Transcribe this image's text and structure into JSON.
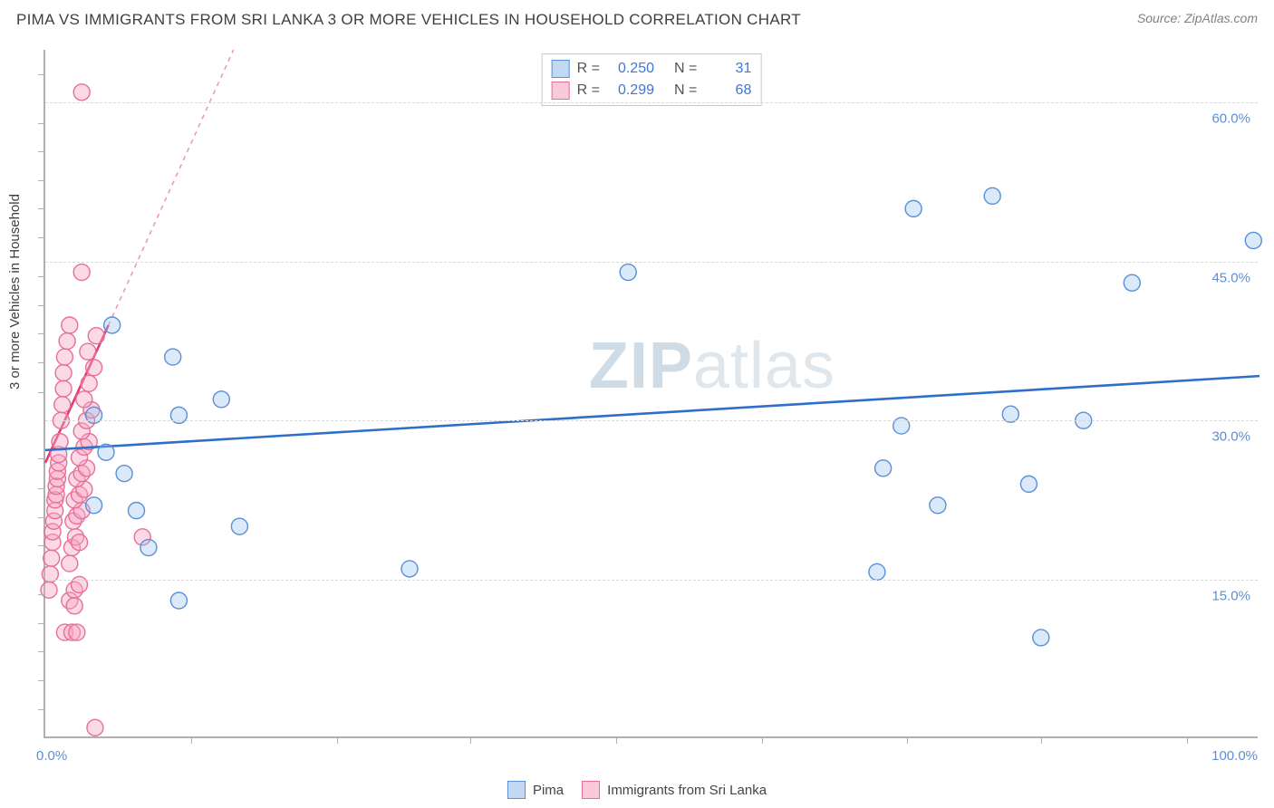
{
  "title": "PIMA VS IMMIGRANTS FROM SRI LANKA 3 OR MORE VEHICLES IN HOUSEHOLD CORRELATION CHART",
  "source": "Source: ZipAtlas.com",
  "watermark": "ZIPatlas",
  "y_axis_title": "3 or more Vehicles in Household",
  "x_min_label": "0.0%",
  "x_max_label": "100.0%",
  "chart": {
    "type": "scatter",
    "xlim": [
      0,
      100
    ],
    "ylim": [
      0,
      65
    ],
    "y_ticks": [
      15.0,
      30.0,
      45.0,
      60.0
    ],
    "y_tick_labels": [
      "15.0%",
      "30.0%",
      "45.0%",
      "60.0%"
    ],
    "x_minor_ticks": [
      12,
      24,
      35,
      47,
      59,
      71,
      82,
      94
    ],
    "y_minor_ticks": [
      2.7,
      5.5,
      8.2,
      10.9,
      13.6,
      18.2,
      20.9,
      23.6,
      26.4,
      32.7,
      35.5,
      38.2,
      40.9,
      43.6,
      47.3,
      50,
      52.7,
      55.4,
      58.1,
      62.7
    ],
    "grid_color": "#d8d8d8",
    "background_color": "#ffffff",
    "axis_color": "#b0b0b0",
    "tick_label_color": "#5b8fd6",
    "marker_radius": 9,
    "marker_stroke_width": 1.4,
    "trend_line_width": 2.6,
    "series": {
      "pima": {
        "label": "Pima",
        "fill": "rgba(150,195,240,0.35)",
        "stroke": "#5b8fd6",
        "trend_stroke": "#2f6fc9",
        "trend_dash_stroke": "#6fa0e0",
        "r_label": "R =",
        "r_value": "0.250",
        "n_label": "N =",
        "n_value": "31",
        "trend": {
          "x1": 0,
          "y1": 27.2,
          "x2": 100,
          "y2": 34.2
        },
        "points": [
          {
            "x": 4.0,
            "y": 22.0
          },
          {
            "x": 4.0,
            "y": 30.5
          },
          {
            "x": 5.0,
            "y": 27.0
          },
          {
            "x": 5.5,
            "y": 39.0
          },
          {
            "x": 6.5,
            "y": 25.0
          },
          {
            "x": 7.5,
            "y": 21.5
          },
          {
            "x": 8.5,
            "y": 18.0
          },
          {
            "x": 10.5,
            "y": 36.0
          },
          {
            "x": 11.0,
            "y": 13.0
          },
          {
            "x": 11.0,
            "y": 30.5
          },
          {
            "x": 14.5,
            "y": 32.0
          },
          {
            "x": 16.0,
            "y": 20.0
          },
          {
            "x": 30.0,
            "y": 16.0
          },
          {
            "x": 48.0,
            "y": 44.0
          },
          {
            "x": 68.5,
            "y": 15.7
          },
          {
            "x": 69.0,
            "y": 25.5
          },
          {
            "x": 70.5,
            "y": 29.5
          },
          {
            "x": 71.5,
            "y": 50.0
          },
          {
            "x": 73.5,
            "y": 22.0
          },
          {
            "x": 78.0,
            "y": 51.2
          },
          {
            "x": 79.5,
            "y": 30.6
          },
          {
            "x": 81.0,
            "y": 24.0
          },
          {
            "x": 82.0,
            "y": 9.5
          },
          {
            "x": 85.5,
            "y": 30.0
          },
          {
            "x": 89.5,
            "y": 43.0
          },
          {
            "x": 99.5,
            "y": 47.0
          }
        ]
      },
      "sri_lanka": {
        "label": "Immigrants from Sri Lanka",
        "fill": "rgba(248,165,195,0.42)",
        "stroke": "#e66f98",
        "trend_stroke": "#e33b73",
        "trend_dash_stroke": "#ef9ab5",
        "r_label": "R =",
        "r_value": "0.299",
        "n_label": "N =",
        "n_value": "68",
        "trend": {
          "x1": 0,
          "y1": 26.0,
          "x2": 5.2,
          "y2": 39.0
        },
        "trend_dash": {
          "x1": 5.2,
          "y1": 39.0,
          "x2": 15.5,
          "y2": 65.0
        },
        "points": [
          {
            "x": 0.3,
            "y": 14.0
          },
          {
            "x": 0.4,
            "y": 15.5
          },
          {
            "x": 0.5,
            "y": 17.0
          },
          {
            "x": 0.6,
            "y": 18.5
          },
          {
            "x": 0.6,
            "y": 19.5
          },
          {
            "x": 0.7,
            "y": 20.5
          },
          {
            "x": 0.8,
            "y": 21.5
          },
          {
            "x": 0.8,
            "y": 22.5
          },
          {
            "x": 0.9,
            "y": 23.0
          },
          {
            "x": 0.9,
            "y": 23.8
          },
          {
            "x": 1.0,
            "y": 24.5
          },
          {
            "x": 1.0,
            "y": 25.2
          },
          {
            "x": 1.1,
            "y": 26.0
          },
          {
            "x": 1.1,
            "y": 26.8
          },
          {
            "x": 1.2,
            "y": 28.0
          },
          {
            "x": 1.3,
            "y": 30.0
          },
          {
            "x": 1.4,
            "y": 31.5
          },
          {
            "x": 1.5,
            "y": 33.0
          },
          {
            "x": 1.5,
            "y": 34.5
          },
          {
            "x": 1.6,
            "y": 36.0
          },
          {
            "x": 1.8,
            "y": 37.5
          },
          {
            "x": 2.0,
            "y": 39.0
          },
          {
            "x": 1.6,
            "y": 10.0
          },
          {
            "x": 2.2,
            "y": 10.0
          },
          {
            "x": 2.6,
            "y": 10.0
          },
          {
            "x": 2.0,
            "y": 13.0
          },
          {
            "x": 2.4,
            "y": 12.5
          },
          {
            "x": 2.4,
            "y": 14.0
          },
          {
            "x": 2.8,
            "y": 14.5
          },
          {
            "x": 2.0,
            "y": 16.5
          },
          {
            "x": 2.2,
            "y": 18.0
          },
          {
            "x": 2.5,
            "y": 19.0
          },
          {
            "x": 2.8,
            "y": 18.5
          },
          {
            "x": 2.3,
            "y": 20.5
          },
          {
            "x": 2.6,
            "y": 21.0
          },
          {
            "x": 3.0,
            "y": 21.5
          },
          {
            "x": 2.4,
            "y": 22.5
          },
          {
            "x": 2.8,
            "y": 23.0
          },
          {
            "x": 3.2,
            "y": 23.5
          },
          {
            "x": 2.6,
            "y": 24.5
          },
          {
            "x": 3.0,
            "y": 25.0
          },
          {
            "x": 3.4,
            "y": 25.5
          },
          {
            "x": 2.8,
            "y": 26.5
          },
          {
            "x": 3.2,
            "y": 27.5
          },
          {
            "x": 3.6,
            "y": 28.0
          },
          {
            "x": 3.0,
            "y": 29.0
          },
          {
            "x": 3.4,
            "y": 30.0
          },
          {
            "x": 3.8,
            "y": 31.0
          },
          {
            "x": 3.2,
            "y": 32.0
          },
          {
            "x": 3.6,
            "y": 33.5
          },
          {
            "x": 4.0,
            "y": 35.0
          },
          {
            "x": 3.5,
            "y": 36.5
          },
          {
            "x": 4.2,
            "y": 38.0
          },
          {
            "x": 3.0,
            "y": 44.0
          },
          {
            "x": 4.1,
            "y": 1.0
          },
          {
            "x": 3.0,
            "y": 61.0
          },
          {
            "x": 8.0,
            "y": 19.0
          }
        ]
      }
    }
  }
}
